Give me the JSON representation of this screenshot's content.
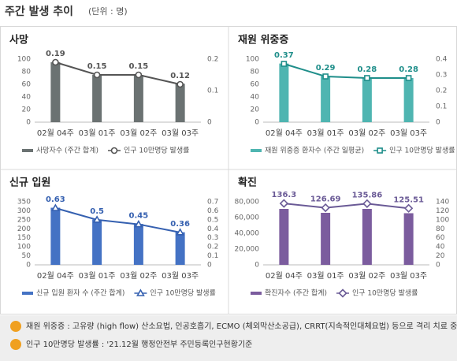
{
  "header": {
    "title": "주간 발생 추이",
    "unit": "(단위 : 명)"
  },
  "chart_data": [
    {
      "type": "combo",
      "title": "사망",
      "categories": [
        "02월 04주",
        "03월 01주",
        "03월 02주",
        "03월 03주"
      ],
      "ylim": [
        0,
        100
      ],
      "yticks": [
        0,
        20,
        40,
        60,
        80,
        100
      ],
      "y2lim": [
        0,
        0.2
      ],
      "y2ticks": [
        0,
        0.1,
        0.2
      ],
      "series": [
        {
          "name": "사망자수 (주간 합계)",
          "type": "bar",
          "color": "#6b7272",
          "values": [
            95,
            75,
            75,
            61
          ]
        },
        {
          "name": "인구 10만명당 발생률",
          "type": "line",
          "axis": "y2",
          "marker": "circle",
          "color": "#555555",
          "values": [
            0.19,
            0.15,
            0.15,
            0.12
          ]
        }
      ]
    },
    {
      "type": "combo",
      "title": "재원 위중증",
      "categories": [
        "02월 04주",
        "03월 01주",
        "03월 02주",
        "03월 03주"
      ],
      "ylim": [
        0,
        100
      ],
      "yticks": [
        0,
        20,
        40,
        60,
        80,
        100
      ],
      "y2lim": [
        0,
        0.4
      ],
      "y2ticks": [
        0,
        0.1,
        0.2,
        0.3,
        0.4
      ],
      "series": [
        {
          "name": "재원 위중증 환자수 (주간 일평균)",
          "type": "bar",
          "color": "#4fb5b1",
          "values": [
            93,
            73,
            70,
            70
          ]
        },
        {
          "name": "인구 10만명당 발생률",
          "type": "line",
          "axis": "y2",
          "marker": "square",
          "color": "#1f8e8a",
          "values": [
            0.37,
            0.29,
            0.28,
            0.28
          ]
        }
      ]
    },
    {
      "type": "combo",
      "title": "신규 입원",
      "categories": [
        "02월 04주",
        "03월 01주",
        "03월 02주",
        "03월 03주"
      ],
      "ylim": [
        0,
        350
      ],
      "yticks": [
        0,
        50,
        100,
        150,
        200,
        250,
        300,
        350
      ],
      "y2lim": [
        0,
        0.7
      ],
      "y2ticks": [
        0,
        0.1,
        0.2,
        0.3,
        0.4,
        0.5,
        0.6,
        0.7
      ],
      "series": [
        {
          "name": "신규 입원 환자 수 (주간 합계)",
          "type": "bar",
          "color": "#4472c4",
          "values": [
            317,
            251,
            227,
            181
          ]
        },
        {
          "name": "인구 10만명당 발생률",
          "type": "line",
          "axis": "y2",
          "marker": "triangle",
          "color": "#3560b0",
          "values": [
            0.63,
            0.5,
            0.45,
            0.36
          ]
        }
      ]
    },
    {
      "type": "combo",
      "title": "확진",
      "categories": [
        "02월 04주",
        "03월 01주",
        "03월 02주",
        "03월 03주"
      ],
      "ylim": [
        0,
        80000
      ],
      "yticks": [
        0,
        {
          "value": 20000,
          "label": "20,000"
        },
        {
          "value": 40000,
          "label": "40,000"
        },
        {
          "value": 60000,
          "label": "60,000"
        },
        {
          "value": 80000,
          "label": "80,000"
        }
      ],
      "y2lim": [
        0,
        140
      ],
      "y2ticks": [
        0,
        20,
        40,
        60,
        80,
        100,
        120,
        140
      ],
      "series": [
        {
          "name": "확진자수 (주간 합계)",
          "type": "bar",
          "color": "#7b5c9e",
          "values": [
            71000,
            66000,
            71000,
            65500
          ]
        },
        {
          "name": "인구 10만명당 발생률",
          "type": "line",
          "axis": "y2",
          "marker": "diamond",
          "color": "#6a5a96",
          "values": [
            136.3,
            126.69,
            135.86,
            125.51
          ]
        }
      ]
    }
  ],
  "notes": [
    "재원 위중증 : 고유량 (high flow) 산소요법, 인공호흡기, ECMO (체외막산소공급), CRRT(지속적인대체요법) 등으로 격리 치료 중인 환자",
    "인구 10만명당 발생률 : '21.12월 행정안전부 주민등록인구현황기준"
  ]
}
